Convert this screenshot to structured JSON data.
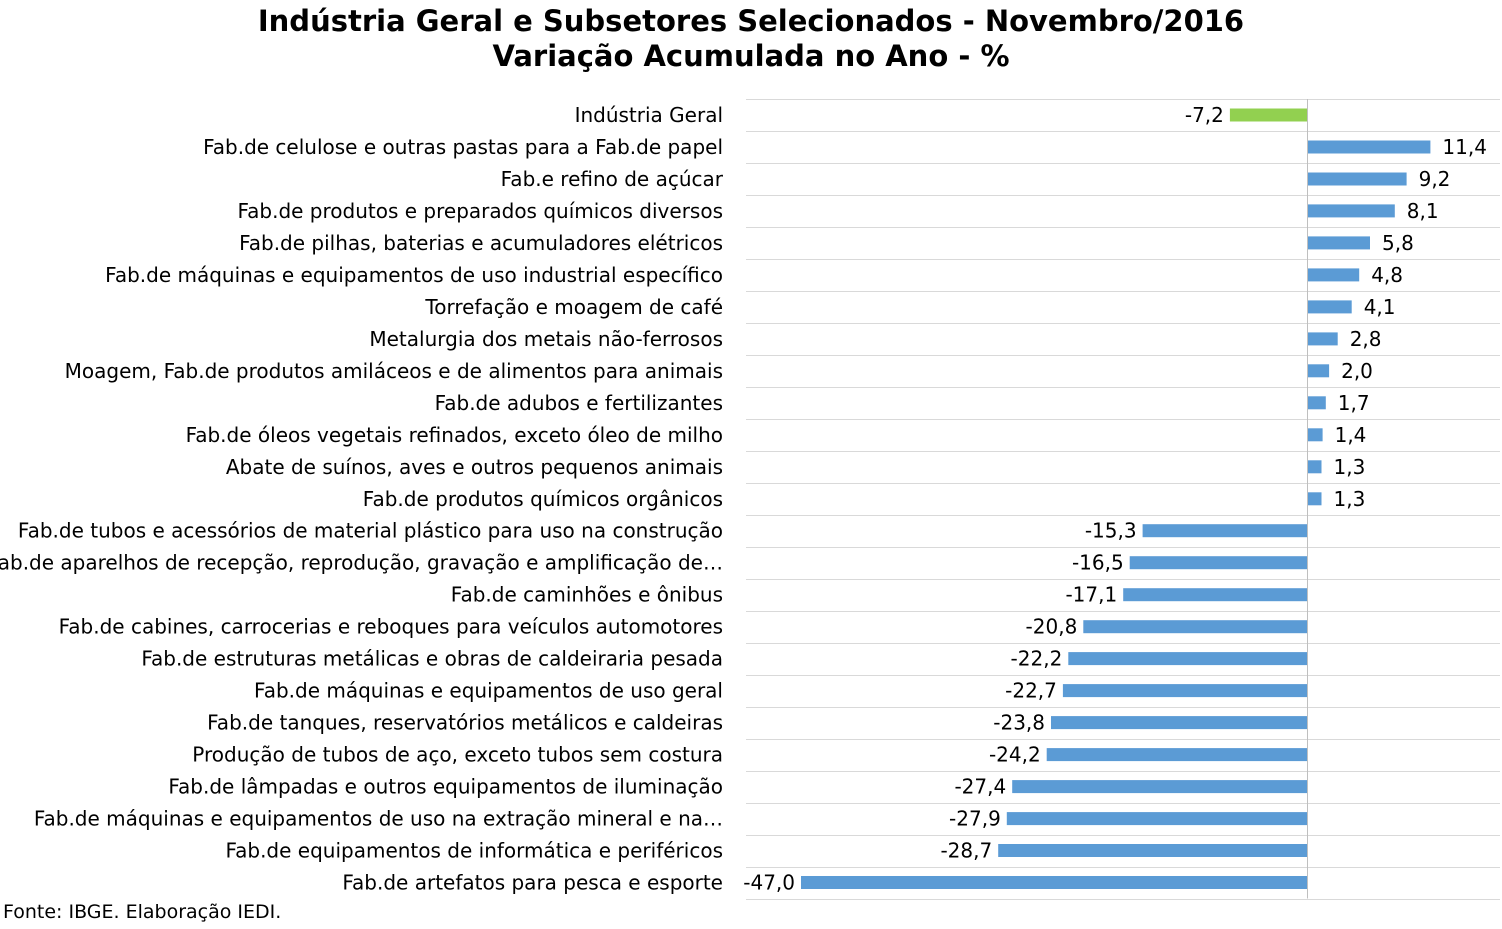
{
  "chart_data": {
    "type": "bar",
    "orientation": "horizontal",
    "title": "Indústria Geral e Subsetores Selecionados - Novembro/2016",
    "subtitle": "Variação Acumulada no Ano - %",
    "xlabel": "",
    "ylabel": "",
    "xlim": [
      -47.0,
      17.0
    ],
    "grid": true,
    "legend": "none",
    "categories": [
      "Indústria Geral",
      "Fab.de celulose e outras pastas para a Fab.de papel",
      "Fab.e refino de açúcar",
      "Fab.de produtos e preparados químicos diversos",
      "Fab.de pilhas, baterias e acumuladores elétricos",
      "Fab.de máquinas e equipamentos de uso industrial específico",
      "Torrefação e moagem de café",
      "Metalurgia dos metais não-ferrosos",
      "Moagem, Fab.de produtos amiláceos e de alimentos para animais",
      "Fab.de adubos e fertilizantes",
      "Fab.de óleos vegetais refinados, exceto óleo de milho",
      "Abate de suínos, aves e outros pequenos animais",
      "Fab.de produtos químicos orgânicos",
      "Fab.de tubos e acessórios de material plástico para uso na construção",
      "Fab.de aparelhos de recepção, reprodução, gravação e amplificação de…",
      "Fab.de caminhões e ônibus",
      "Fab.de cabines, carrocerias e reboques para veículos automotores",
      "Fab.de estruturas metálicas e obras de caldeiraria pesada",
      "Fab.de máquinas e equipamentos de uso geral",
      "Fab.de tanques, reservatórios metálicos e caldeiras",
      "Produção de tubos de aço, exceto tubos sem costura",
      "Fab.de lâmpadas e outros equipamentos de iluminação",
      "Fab.de máquinas e equipamentos de uso na extração mineral e na…",
      "Fab.de equipamentos de informática e periféricos",
      "Fab.de artefatos para pesca e esporte"
    ],
    "values": [
      -7.2,
      11.4,
      9.2,
      8.1,
      5.8,
      4.8,
      4.1,
      2.8,
      2.0,
      1.7,
      1.4,
      1.3,
      1.3,
      -15.3,
      -16.5,
      -17.1,
      -20.8,
      -22.2,
      -22.7,
      -23.8,
      -24.2,
      -27.4,
      -27.9,
      -28.7,
      -47.0
    ],
    "value_labels": [
      "-7,2",
      "11,4",
      "9,2",
      "8,1",
      "5,8",
      "4,8",
      "4,1",
      "2,8",
      "2,0",
      "1,7",
      "1,4",
      "1,3",
      "1,3",
      "-15,3",
      "-16,5",
      "-17,1",
      "-20,8",
      "-22,2",
      "-22,7",
      "-23,8",
      "-24,2",
      "-27,4",
      "-27,9",
      "-28,7",
      "-47,0"
    ],
    "colors": {
      "highlight": "#92D050",
      "bar": "#5B9BD5",
      "grid": "#D9D9D9",
      "axis": "#BFBFBF"
    },
    "highlight_index": 0
  },
  "source": "Fonte: IBGE. Elaboração IEDI."
}
